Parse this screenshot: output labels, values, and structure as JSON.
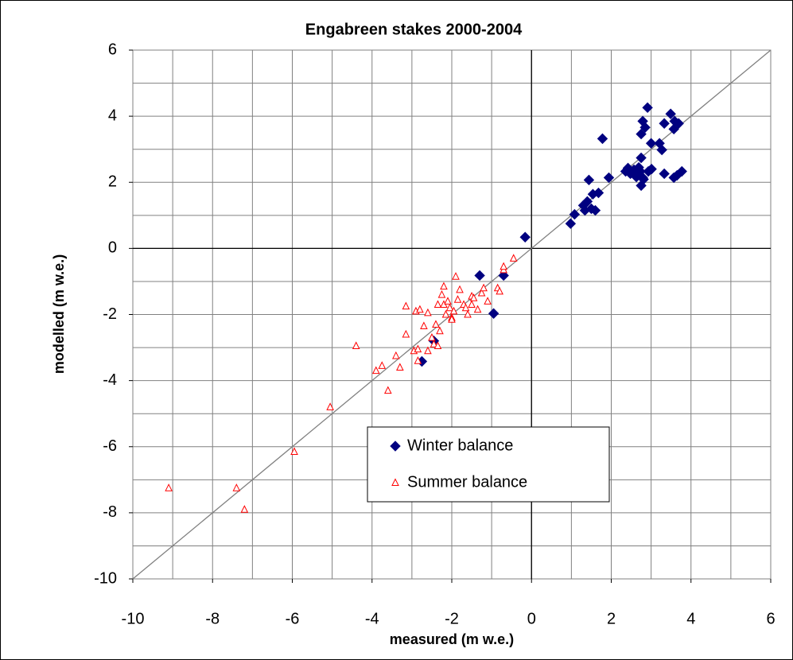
{
  "chart_data": {
    "type": "scatter",
    "title": "Engabreen stakes 2000-2004",
    "xlabel": "measured (m w.e.)",
    "ylabel": "modelled (m w.e.)",
    "xlim": [
      -10,
      6
    ],
    "ylim": [
      -10,
      6
    ],
    "xticks": [
      -10,
      -8,
      -6,
      -4,
      -2,
      0,
      2,
      4,
      6
    ],
    "yticks": [
      -10,
      -8,
      -6,
      -4,
      -2,
      0,
      2,
      4,
      6
    ],
    "grid": true,
    "grid_step": 1,
    "diagonal": true,
    "series": [
      {
        "name": "Winter balance",
        "color": "#000080",
        "marker": "diamond",
        "x": [
          -0.16,
          -0.7,
          -1.3,
          -0.95,
          -2.45,
          -2.75,
          0.98,
          1.08,
          1.3,
          1.34,
          1.4,
          1.44,
          1.5,
          1.54,
          1.6,
          1.68,
          1.78,
          1.94,
          2.36,
          2.42,
          2.48,
          2.57,
          2.63,
          2.69,
          2.73,
          2.79,
          2.63,
          2.75,
          2.79,
          2.85,
          2.75,
          2.75,
          2.81,
          2.91,
          3.0,
          2.93,
          3.01,
          3.21,
          3.27,
          3.33,
          3.33,
          3.49,
          3.57,
          3.59,
          3.65,
          3.57,
          3.69,
          3.77
        ],
        "y": [
          0.34,
          -0.82,
          -0.82,
          -1.97,
          -2.8,
          -3.42,
          0.75,
          1.03,
          1.3,
          1.15,
          1.42,
          2.07,
          1.2,
          1.64,
          1.15,
          1.68,
          3.32,
          2.14,
          2.33,
          2.43,
          2.26,
          2.38,
          2.26,
          2.45,
          2.33,
          2.14,
          2.16,
          3.46,
          3.85,
          3.66,
          2.74,
          1.9,
          2.09,
          4.26,
          3.18,
          2.33,
          2.4,
          3.18,
          2.98,
          3.78,
          2.26,
          4.07,
          3.61,
          3.85,
          2.21,
          2.14,
          3.78,
          2.33
        ]
      },
      {
        "name": "Summer balance",
        "color": "#ff0000",
        "marker": "triangle",
        "x": [
          -9.1,
          -7.4,
          -7.2,
          -5.95,
          -5.05,
          -4.4,
          -3.9,
          -3.75,
          -3.6,
          -3.4,
          -3.3,
          -3.15,
          -3.15,
          -2.95,
          -2.9,
          -2.85,
          -2.85,
          -2.8,
          -2.7,
          -2.6,
          -2.6,
          -2.5,
          -2.45,
          -2.4,
          -2.35,
          -2.35,
          -2.3,
          -2.25,
          -2.2,
          -2.2,
          -2.15,
          -2.1,
          -2.05,
          -2.0,
          -2.0,
          -1.95,
          -1.9,
          -1.85,
          -1.8,
          -1.7,
          -1.6,
          -1.5,
          -1.45,
          -1.35,
          -1.25,
          -1.2,
          -1.1,
          -0.85,
          -0.8,
          -0.7,
          -0.7,
          -0.45,
          -1.5,
          -1.65
        ],
        "y": [
          -7.25,
          -7.25,
          -7.9,
          -6.15,
          -4.8,
          -2.95,
          -3.7,
          -3.55,
          -4.3,
          -3.25,
          -3.6,
          -1.75,
          -2.6,
          -3.1,
          -1.9,
          -3.05,
          -3.4,
          -1.85,
          -2.35,
          -1.95,
          -3.1,
          -2.7,
          -2.9,
          -2.3,
          -1.7,
          -2.95,
          -2.5,
          -1.4,
          -1.15,
          -1.7,
          -2.0,
          -1.6,
          -1.8,
          -2.1,
          -2.15,
          -1.9,
          -0.85,
          -1.55,
          -1.25,
          -1.7,
          -2.0,
          -1.45,
          -1.5,
          -1.85,
          -1.35,
          -1.2,
          -1.6,
          -1.2,
          -1.3,
          -0.65,
          -0.55,
          -0.3,
          -1.7,
          -1.8
        ]
      }
    ]
  }
}
